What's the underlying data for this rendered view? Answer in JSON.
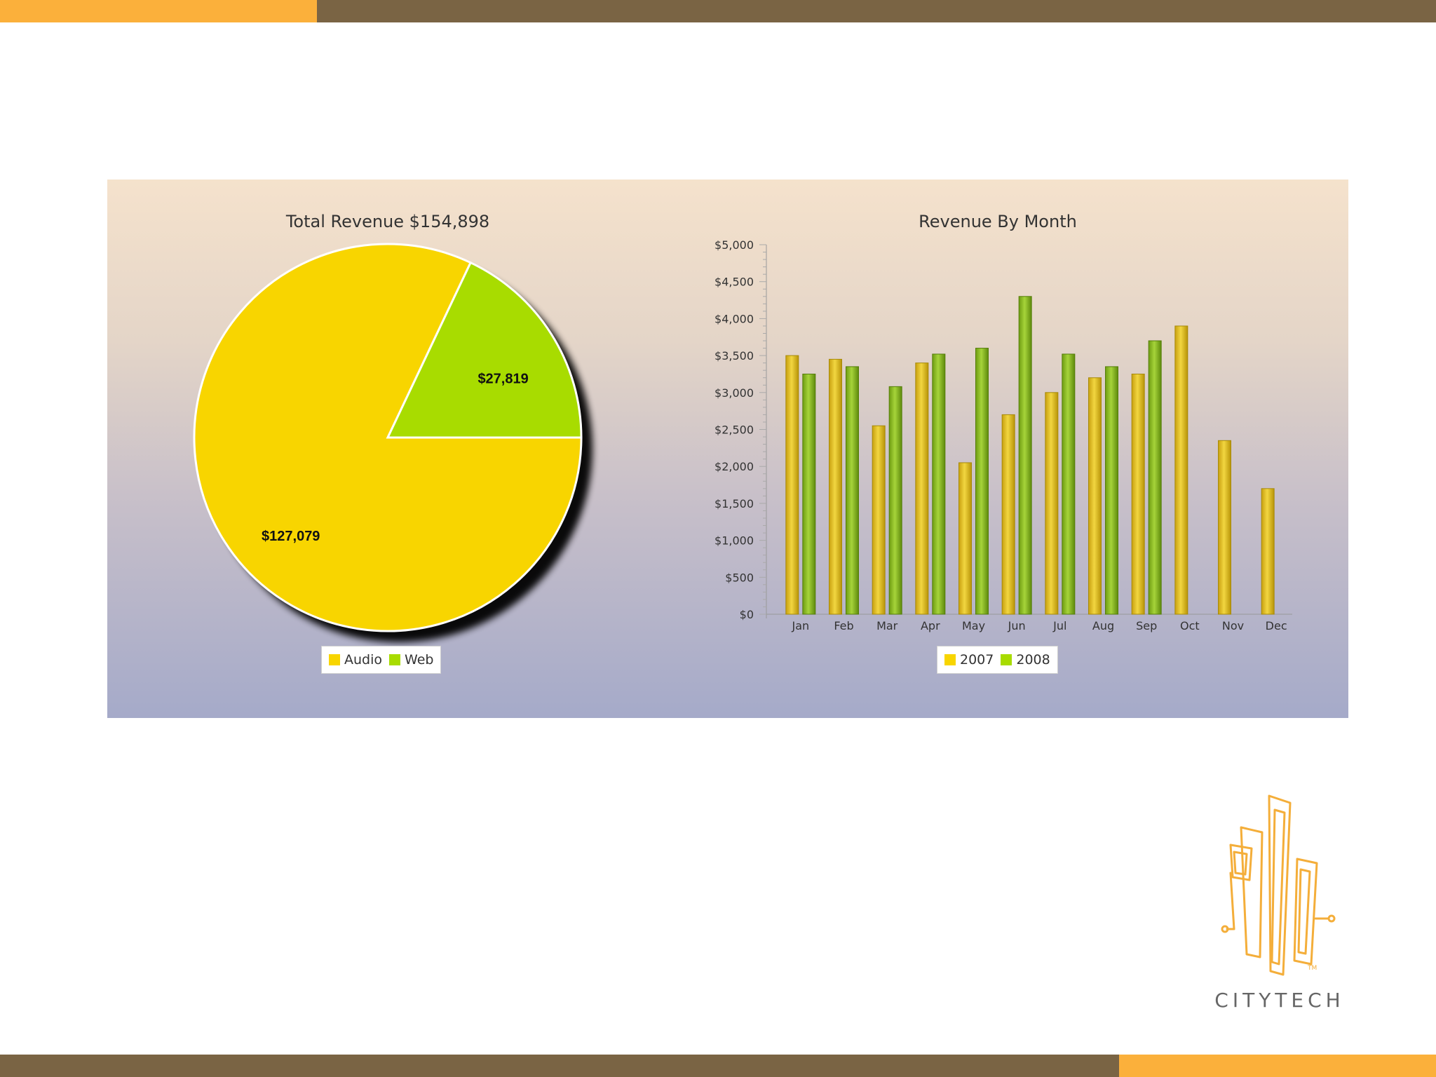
{
  "colors": {
    "accent_orange": "#FBB03B",
    "brand_brown": "#7A6444",
    "audio_yellow": "#F8D500",
    "web_green": "#A8DC00",
    "bar_2007": "#E8C520",
    "bar_2008": "#8CC022"
  },
  "logo": {
    "text": "CITYTECH",
    "icon": "city-skyline-logo-icon"
  },
  "chart_data": [
    {
      "type": "pie",
      "title": "Total Revenue $154,898",
      "categories": [
        "Audio",
        "Web"
      ],
      "values": [
        127079,
        27819
      ],
      "slice_labels": [
        "$127,079",
        "$27,819"
      ],
      "legend": {
        "placement": "bottom",
        "entries": [
          "Audio",
          "Web"
        ]
      }
    },
    {
      "type": "bar",
      "title": "Revenue By Month",
      "categories": [
        "Jan",
        "Feb",
        "Mar",
        "Apr",
        "May",
        "Jun",
        "Jul",
        "Aug",
        "Sep",
        "Oct",
        "Nov",
        "Dec"
      ],
      "series": [
        {
          "name": "2007",
          "values": [
            3500,
            3450,
            2550,
            3400,
            2050,
            2700,
            3000,
            3200,
            3250,
            3900,
            2350,
            1700
          ]
        },
        {
          "name": "2008",
          "values": [
            3250,
            3350,
            3080,
            3520,
            3600,
            4300,
            3520,
            3350,
            3700,
            null,
            null,
            null
          ]
        }
      ],
      "ylim": [
        0,
        5000
      ],
      "y_ticks": [
        0,
        500,
        1000,
        1500,
        2000,
        2500,
        3000,
        3500,
        4000,
        4500,
        5000
      ],
      "y_tick_labels": [
        "$0",
        "$500",
        "$1,000",
        "$1,500",
        "$2,000",
        "$2,500",
        "$3,000",
        "$3,500",
        "$4,000",
        "$4,500",
        "$5,000"
      ],
      "xlabel": "",
      "ylabel": "",
      "grid": false,
      "legend": {
        "placement": "bottom",
        "entries": [
          "2007",
          "2008"
        ]
      }
    }
  ]
}
